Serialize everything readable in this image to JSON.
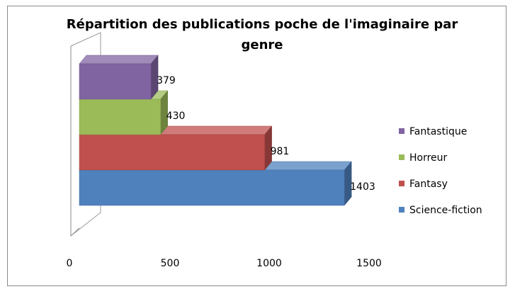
{
  "chart_data": {
    "type": "bar",
    "orientation": "horizontal",
    "style": "3d-stacked-bars",
    "title": "Répartition des publications poche de l'imaginaire par genre",
    "xlabel": "",
    "ylabel": "",
    "xlim": [
      0,
      1500
    ],
    "ticks": [
      "0",
      "500",
      "1000",
      "1500"
    ],
    "grid": false,
    "legend_position": "right",
    "series": [
      {
        "name": "Fantastique",
        "values": [
          379
        ],
        "label": "379",
        "color": "#8064A2"
      },
      {
        "name": "Horreur",
        "values": [
          430
        ],
        "label": "430",
        "color": "#9BBB59"
      },
      {
        "name": "Fantasy",
        "values": [
          981
        ],
        "label": "981",
        "color": "#C0504D"
      },
      {
        "name": "Science-fiction",
        "values": [
          1403
        ],
        "label": "1403",
        "color": "#4F81BD"
      }
    ]
  }
}
